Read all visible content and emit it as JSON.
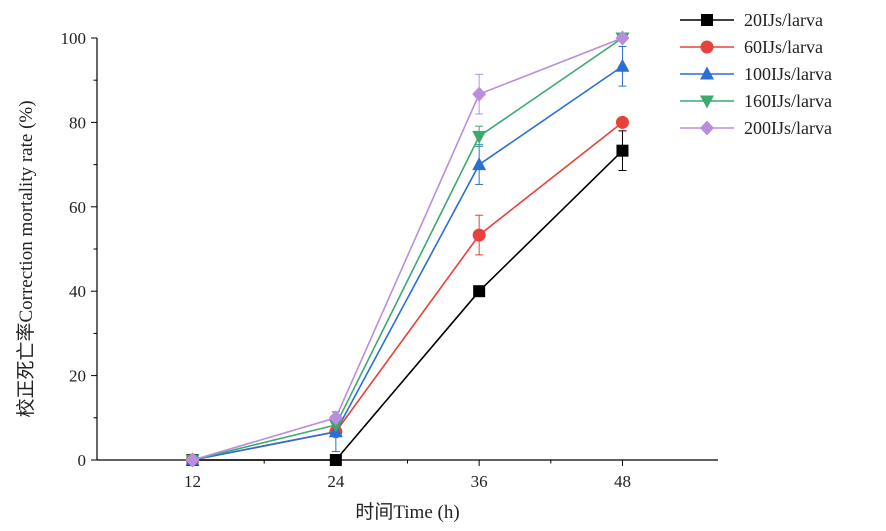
{
  "chart_data": {
    "type": "line",
    "xlabel": "时间Time (h)",
    "ylabel": "校正死亡率Correction mortality rate (%)",
    "x": [
      12,
      24,
      36,
      48
    ],
    "xlim": [
      4,
      56
    ],
    "ylim": [
      0,
      100
    ],
    "yticks": [
      0,
      20,
      40,
      60,
      80,
      100
    ],
    "legend_position": "top-right",
    "grid": false,
    "series": [
      {
        "name": "20IJs/larva",
        "color": "#000000",
        "marker": "square",
        "values": [
          0,
          0,
          40,
          73.3
        ],
        "errors": [
          0,
          0,
          0,
          4.7
        ]
      },
      {
        "name": "60IJs/larva",
        "color": "#e8403a",
        "marker": "circle",
        "values": [
          0,
          6.7,
          53.3,
          80
        ],
        "errors": [
          0,
          0,
          4.7,
          0
        ]
      },
      {
        "name": "100IJs/larva",
        "color": "#2b6fd6",
        "marker": "triangle-up",
        "values": [
          0,
          6.7,
          70,
          93.3
        ],
        "errors": [
          0,
          4.7,
          4.7,
          4.7
        ]
      },
      {
        "name": "160IJs/larva",
        "color": "#3aaa6e",
        "marker": "triangle-down",
        "values": [
          0,
          8.3,
          76.7,
          100
        ],
        "errors": [
          0,
          0,
          2.4,
          0
        ]
      },
      {
        "name": "200IJs/larva",
        "color": "#b98ee0",
        "marker": "diamond",
        "values": [
          0,
          10,
          86.7,
          100
        ],
        "errors": [
          0,
          0,
          4.7,
          0
        ]
      }
    ]
  }
}
